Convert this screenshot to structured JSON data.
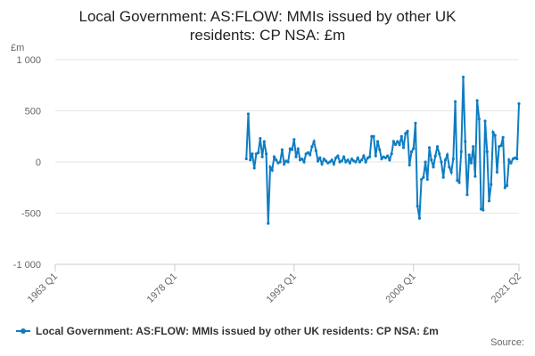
{
  "chart_data": {
    "type": "line",
    "title": [
      "Local Government: AS:FLOW: MMIs issued by other UK",
      "residents: CP NSA: £m"
    ],
    "y_label": "£m",
    "source": "Source:",
    "xlim": [
      1963,
      2021.25
    ],
    "xticks": [
      {
        "value": 1963,
        "label": "1963 Q1"
      },
      {
        "value": 1978,
        "label": "1978 Q1"
      },
      {
        "value": 1993,
        "label": "1993 Q1"
      },
      {
        "value": 2008,
        "label": "2008 Q1"
      },
      {
        "value": 2021.25,
        "label": "2021 Q2"
      }
    ],
    "ylim": [
      -1000,
      1000
    ],
    "yticks": [
      {
        "value": -1000,
        "label": "-1 000"
      },
      -500,
      0,
      500,
      {
        "value": 1000,
        "label": "1 000"
      }
    ],
    "grid": true,
    "legend": "bottom",
    "x": [
      1987,
      1987.25,
      1987.5,
      1987.75,
      1988,
      1988.25,
      1988.5,
      1988.75,
      1989,
      1989.25,
      1989.5,
      1989.75,
      1990,
      1990.25,
      1990.5,
      1990.75,
      1991,
      1991.25,
      1991.5,
      1991.75,
      1992,
      1992.25,
      1992.5,
      1992.75,
      1993,
      1993.25,
      1993.5,
      1993.75,
      1994,
      1994.25,
      1994.5,
      1994.75,
      1995,
      1995.25,
      1995.5,
      1995.75,
      1996,
      1996.25,
      1996.5,
      1996.75,
      1997,
      1997.25,
      1997.5,
      1997.75,
      1998,
      1998.25,
      1998.5,
      1998.75,
      1999,
      1999.25,
      1999.5,
      1999.75,
      2000,
      2000.25,
      2000.5,
      2000.75,
      2001,
      2001.25,
      2001.5,
      2001.75,
      2002,
      2002.25,
      2002.5,
      2002.75,
      2003,
      2003.25,
      2003.5,
      2003.75,
      2004,
      2004.25,
      2004.5,
      2004.75,
      2005,
      2005.25,
      2005.5,
      2005.75,
      2006,
      2006.25,
      2006.5,
      2006.75,
      2007,
      2007.25,
      2007.5,
      2007.75,
      2008,
      2008.25,
      2008.5,
      2008.75,
      2009,
      2009.25,
      2009.5,
      2009.75,
      2010,
      2010.25,
      2010.5,
      2010.75,
      2011,
      2011.25,
      2011.5,
      2011.75,
      2012,
      2012.25,
      2012.5,
      2012.75,
      2013,
      2013.25,
      2013.5,
      2013.75,
      2014,
      2014.25,
      2014.5,
      2014.75,
      2015,
      2015.25,
      2015.5,
      2015.75,
      2016,
      2016.25,
      2016.5,
      2016.75,
      2017,
      2017.25,
      2017.5,
      2017.75,
      2018,
      2018.25,
      2018.5,
      2018.75,
      2019,
      2019.25,
      2019.5,
      2019.75,
      2020,
      2020.25,
      2020.5,
      2020.75,
      2021,
      2021.25
    ],
    "series": [
      {
        "name": "Local Government: AS:FLOW: MMIs issued by other UK residents: CP NSA: £m",
        "color": "#0e7dc2",
        "values": [
          30,
          470,
          20,
          80,
          -60,
          80,
          90,
          230,
          50,
          200,
          80,
          -600,
          -50,
          -80,
          50,
          20,
          -10,
          0,
          120,
          -20,
          10,
          0,
          130,
          120,
          220,
          50,
          130,
          20,
          30,
          0,
          80,
          90,
          70,
          150,
          200,
          110,
          10,
          40,
          -20,
          30,
          10,
          -10,
          0,
          20,
          -20,
          40,
          60,
          0,
          10,
          50,
          0,
          20,
          -10,
          30,
          10,
          0,
          40,
          0,
          20,
          60,
          0,
          40,
          50,
          250,
          250,
          60,
          200,
          120,
          30,
          50,
          40,
          60,
          20,
          80,
          200,
          170,
          200,
          170,
          250,
          140,
          280,
          300,
          -30,
          100,
          130,
          380,
          -430,
          -550,
          -170,
          -150,
          0,
          -170,
          140,
          20,
          -50,
          60,
          150,
          80,
          0,
          -150,
          20,
          70,
          -50,
          -100,
          30,
          590,
          -180,
          -200,
          100,
          830,
          200,
          -320,
          70,
          -10,
          150,
          -140,
          600,
          420,
          -460,
          -470,
          400,
          100,
          -380,
          -220,
          290,
          260,
          -100,
          150,
          160,
          240,
          -250,
          -230,
          20,
          -10,
          30,
          40,
          30,
          570
        ]
      }
    ]
  }
}
